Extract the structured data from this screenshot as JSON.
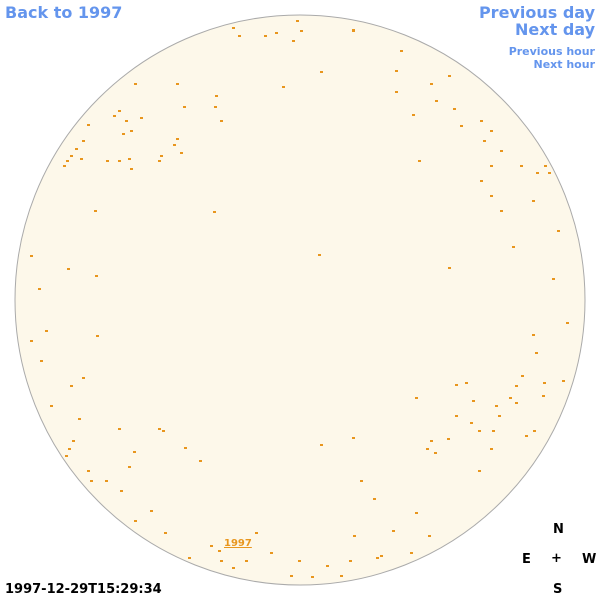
{
  "nav": {
    "back": "Back to 1997",
    "previous_day": "Previous day",
    "next_day": "Next day",
    "previous_hour": "Previous hour",
    "next_hour": "Next hour"
  },
  "disk": {
    "year_link": "1997"
  },
  "compass": {
    "n": "N",
    "e": "E",
    "center": "+",
    "w": "W",
    "s": "S"
  },
  "timestamp": "1997-12-29T15:29:34",
  "colors": {
    "nav": "#6495ed",
    "disk_fill": "#fdf8ea",
    "disk_edge": "#aaaaaa",
    "feature": "#e8961e"
  }
}
